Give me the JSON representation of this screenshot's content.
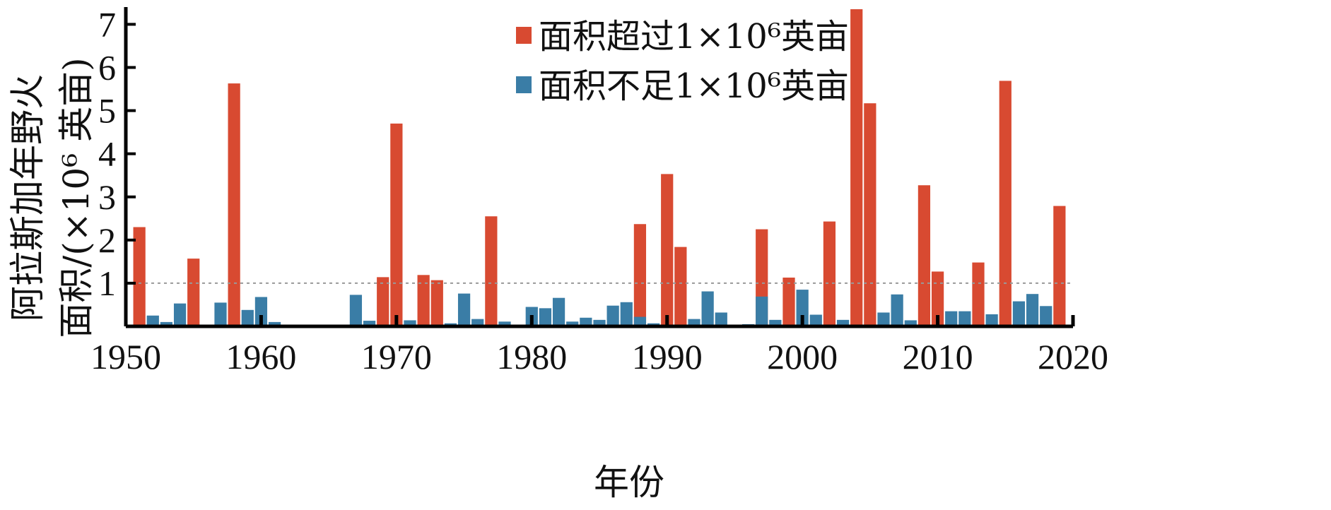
{
  "chart_data": {
    "type": "bar",
    "xlabel": "年份",
    "ylabel_line1": "阿拉斯加年野火",
    "ylabel_line2": "面积/(×10⁶ 英亩)",
    "xlim": [
      1950,
      2020
    ],
    "ylim": [
      0,
      7.4
    ],
    "x_ticks": [
      1950,
      1960,
      1970,
      1980,
      1990,
      2000,
      2010,
      2020
    ],
    "y_ticks": [
      1,
      2,
      3,
      4,
      5,
      6,
      7
    ],
    "reference_line": 1,
    "grid": false,
    "legend_position": "top-right",
    "colors": {
      "over": "#d84a31",
      "under": "#3a7da6",
      "reference": "#999999"
    },
    "series": [
      {
        "name": "面积超过1×10⁶英亩",
        "key": "over",
        "x": [
          1951,
          1955,
          1958,
          1969,
          1970,
          1972,
          1973,
          1977,
          1988,
          1990,
          1991,
          1997,
          1999,
          2002,
          2004,
          2005,
          2009,
          2010,
          2013,
          2015,
          2019
        ],
        "values": [
          2.3,
          1.57,
          5.63,
          1.14,
          4.7,
          1.19,
          1.07,
          2.55,
          2.37,
          3.53,
          1.84,
          2.25,
          1.13,
          2.43,
          7.35,
          5.17,
          3.27,
          1.27,
          1.48,
          5.69,
          2.79
        ]
      },
      {
        "name": "面积不足1×10⁶英亩",
        "key": "under",
        "x": [
          1952,
          1953,
          1954,
          1956,
          1957,
          1959,
          1960,
          1961,
          1963,
          1967,
          1968,
          1971,
          1974,
          1975,
          1976,
          1978,
          1980,
          1981,
          1982,
          1983,
          1984,
          1985,
          1986,
          1987,
          1988,
          1989,
          1992,
          1993,
          1994,
          1996,
          1997,
          1998,
          2000,
          2001,
          2003,
          2006,
          2007,
          2008,
          2011,
          2012,
          2014,
          2016,
          2017,
          2018
        ],
        "values": [
          0.25,
          0.1,
          0.53,
          0.04,
          0.55,
          0.38,
          0.68,
          0.1,
          0.04,
          0.73,
          0.13,
          0.14,
          0.07,
          0.76,
          0.17,
          0.11,
          0.45,
          0.42,
          0.66,
          0.11,
          0.2,
          0.15,
          0.48,
          0.56,
          0.22,
          0.07,
          0.17,
          0.81,
          0.32,
          0.05,
          0.69,
          0.15,
          0.85,
          0.27,
          0.15,
          0.32,
          0.74,
          0.14,
          0.35,
          0.35,
          0.28,
          0.58,
          0.75,
          0.47
        ]
      }
    ],
    "legend": [
      {
        "key": "over",
        "label": "面积超过1×10⁶英亩"
      },
      {
        "key": "under",
        "label": "面积不足1×10⁶英亩"
      }
    ]
  }
}
